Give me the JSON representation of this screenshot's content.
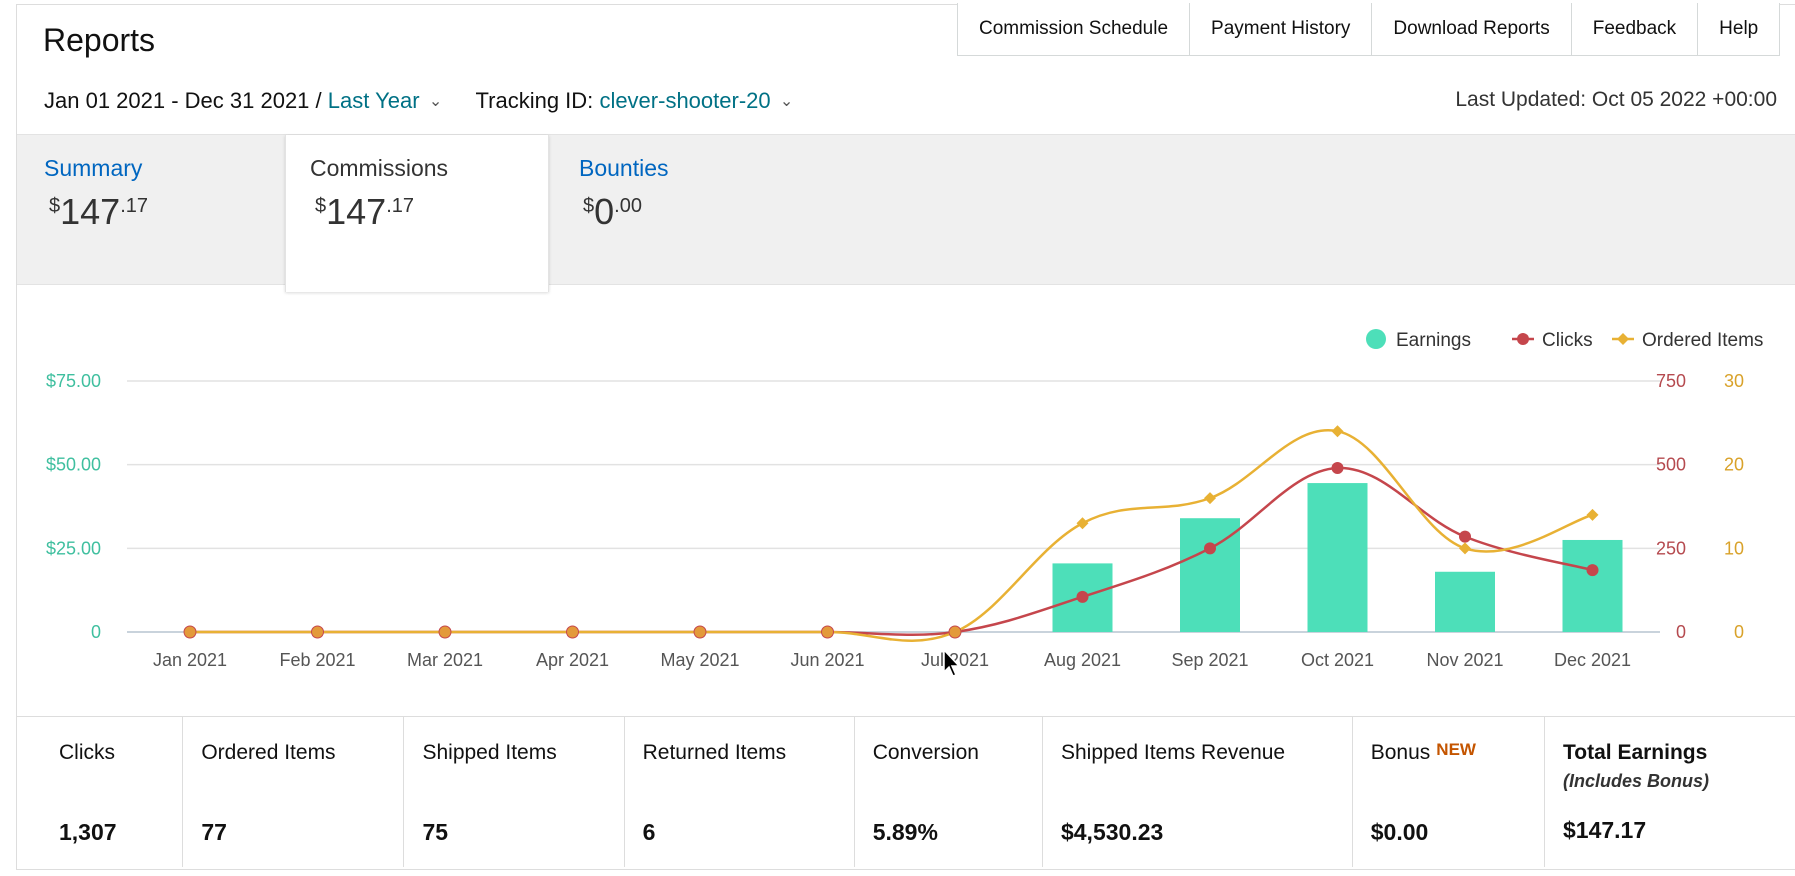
{
  "header": {
    "title": "Reports",
    "nav": [
      "Commission Schedule",
      "Payment History",
      "Download Reports",
      "Feedback",
      "Help"
    ]
  },
  "filters": {
    "date_range": "Jan 01 2021 - Dec 31 2021 /",
    "date_preset": "Last Year",
    "tracking_label": "Tracking ID:",
    "tracking_id": "clever-shooter-20",
    "last_updated": "Last Updated: Oct 05 2022 +00:00"
  },
  "tabs": [
    {
      "label": "Summary",
      "currency": "$",
      "integer": "147",
      "decimal": ".17"
    },
    {
      "label": "Commissions",
      "currency": "$",
      "integer": "147",
      "decimal": ".17"
    },
    {
      "label": "Bounties",
      "currency": "$",
      "integer": "0",
      "decimal": ".00"
    }
  ],
  "chart_data": {
    "type": "bar",
    "categories": [
      "Jan 2021",
      "Feb 2021",
      "Mar 2021",
      "Apr 2021",
      "May 2021",
      "Jun 2021",
      "Jul 2021",
      "Aug 2021",
      "Sep 2021",
      "Oct 2021",
      "Nov 2021",
      "Dec 2021"
    ],
    "series": [
      {
        "name": "Earnings",
        "type": "bar",
        "axis": "left",
        "color": "#4ddfb9",
        "values": [
          0,
          0,
          0,
          0,
          0,
          0,
          0,
          20.5,
          34,
          44.5,
          18,
          27.5
        ]
      },
      {
        "name": "Clicks",
        "type": "line",
        "axis": "right1",
        "color": "#c5464c",
        "values": [
          0,
          0,
          0,
          0,
          0,
          0,
          0,
          105,
          250,
          490,
          285,
          185
        ]
      },
      {
        "name": "Ordered Items",
        "type": "line",
        "axis": "right2",
        "color": "#e8b134",
        "values": [
          0,
          0,
          0,
          0,
          0,
          0,
          0,
          13,
          16,
          24,
          10,
          14
        ]
      }
    ],
    "axes": {
      "left": {
        "ticks": [
          "0",
          "$25.00",
          "$50.00",
          "$75.00"
        ],
        "range": [
          0,
          75
        ],
        "color": "#3fbf9f"
      },
      "right1": {
        "ticks": [
          "0",
          "250",
          "500",
          "750"
        ],
        "range": [
          0,
          750
        ],
        "color": "#b54a4f"
      },
      "right2": {
        "ticks": [
          "0",
          "10",
          "20",
          "30"
        ],
        "range": [
          0,
          30
        ],
        "color": "#d9a22a"
      }
    },
    "grid": true,
    "legend_position": "top-right"
  },
  "stats": [
    {
      "label": "Clicks",
      "value": "1,307"
    },
    {
      "label": "Ordered Items",
      "value": "77"
    },
    {
      "label": "Shipped Items",
      "value": "75"
    },
    {
      "label": "Returned Items",
      "value": "6"
    },
    {
      "label": "Conversion",
      "value": "5.89%"
    },
    {
      "label": "Shipped Items Revenue",
      "value": "$4,530.23"
    },
    {
      "label": "Bonus",
      "badge": "NEW",
      "value": "$0.00"
    },
    {
      "label": "Total Earnings",
      "note": "(Includes Bonus)",
      "value": "$147.17"
    }
  ]
}
